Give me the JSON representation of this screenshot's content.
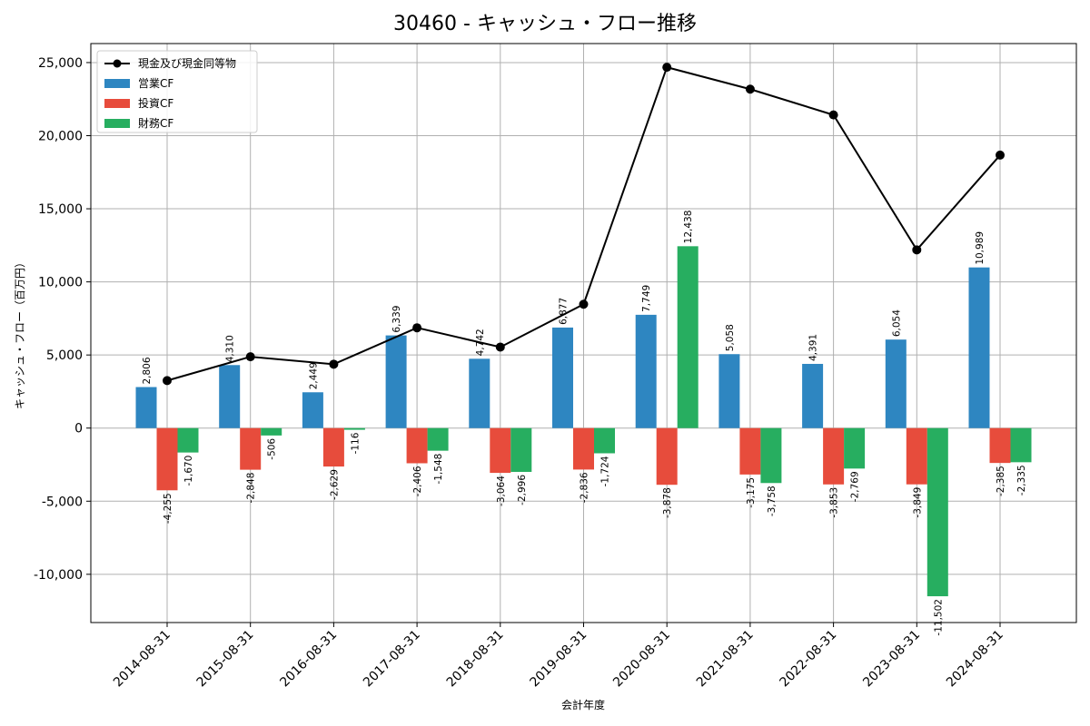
{
  "chart_data": {
    "type": "bar",
    "title": "30460 - キャッシュ・フロー推移",
    "xlabel": "会計年度",
    "ylabel": "キャッシュ・フロー（百万円）",
    "ylim": [
      -13300,
      26300
    ],
    "yticks": [
      -10000,
      -5000,
      0,
      5000,
      10000,
      15000,
      20000,
      25000
    ],
    "ytick_labels": [
      "-10,000",
      "-5,000",
      "0",
      "5,000",
      "10,000",
      "15,000",
      "20,000",
      "25,000"
    ],
    "grid": true,
    "legend_position": "top-left",
    "categories": [
      "2014-08-31",
      "2015-08-31",
      "2016-08-31",
      "2017-08-31",
      "2018-08-31",
      "2019-08-31",
      "2020-08-31",
      "2021-08-31",
      "2022-08-31",
      "2023-08-31",
      "2024-08-31"
    ],
    "series": [
      {
        "name": "営業CF",
        "type": "bar",
        "color": "#2e86c1",
        "values": [
          2806,
          4310,
          2449,
          6339,
          4742,
          6877,
          7749,
          5058,
          4391,
          6054,
          10989
        ],
        "labels": [
          "2,806",
          "4,310",
          "2,449",
          "6,339",
          "4,742",
          "6,877",
          "7,749",
          "5,058",
          "4,391",
          "6,054",
          "10,989"
        ]
      },
      {
        "name": "投資CF",
        "type": "bar",
        "color": "#e74c3c",
        "values": [
          -4255,
          -2848,
          -2629,
          -2406,
          -3064,
          -2836,
          -3878,
          -3175,
          -3853,
          -3849,
          -2385
        ],
        "labels": [
          "-4,255",
          "-2,848",
          "-2,629",
          "-2,406",
          "-3,064",
          "-2,836",
          "-3,878",
          "-3,175",
          "-3,853",
          "-3,849",
          "-2,385"
        ]
      },
      {
        "name": "財務CF",
        "type": "bar",
        "color": "#27ae60",
        "values": [
          -1670,
          -506,
          -116,
          -1548,
          -2996,
          -1724,
          12438,
          -3758,
          -2769,
          -11502,
          -2335
        ],
        "labels": [
          "-1,670",
          "-506",
          "-116",
          "-1,548",
          "-2,996",
          "-1,724",
          "12,438",
          "-3,758",
          "-2,769",
          "-11,502",
          "-2,335"
        ]
      },
      {
        "name": "現金及び現金同等物",
        "type": "line",
        "color": "#000000",
        "values": [
          3250,
          4880,
          4370,
          6860,
          5540,
          8470,
          24680,
          23180,
          21420,
          12190,
          18670
        ]
      }
    ]
  }
}
